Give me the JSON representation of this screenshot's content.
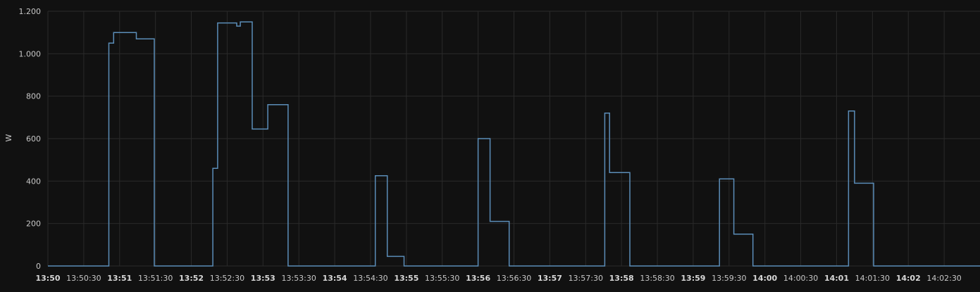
{
  "chart_data": {
    "type": "line",
    "step": true,
    "ylabel": "W",
    "ylim": [
      0,
      1200
    ],
    "yticks": [
      0,
      200,
      400,
      600,
      800,
      1000,
      1200
    ],
    "ytick_labels": [
      "0",
      "200",
      "400",
      "600",
      "800",
      "1.000",
      "1.200"
    ],
    "xlim": [
      "13:50:00",
      "14:03:00"
    ],
    "xticks": [
      {
        "t": "13:50:00",
        "label": "13:50",
        "major": true
      },
      {
        "t": "13:50:30",
        "label": "13:50:30",
        "major": false
      },
      {
        "t": "13:51:00",
        "label": "13:51",
        "major": true
      },
      {
        "t": "13:51:30",
        "label": "13:51:30",
        "major": false
      },
      {
        "t": "13:52:00",
        "label": "13:52",
        "major": true
      },
      {
        "t": "13:52:30",
        "label": "13:52:30",
        "major": false
      },
      {
        "t": "13:53:00",
        "label": "13:53",
        "major": true
      },
      {
        "t": "13:53:30",
        "label": "13:53:30",
        "major": false
      },
      {
        "t": "13:54:00",
        "label": "13:54",
        "major": true
      },
      {
        "t": "13:54:30",
        "label": "13:54:30",
        "major": false
      },
      {
        "t": "13:55:00",
        "label": "13:55",
        "major": true
      },
      {
        "t": "13:55:30",
        "label": "13:55:30",
        "major": false
      },
      {
        "t": "13:56:00",
        "label": "13:56",
        "major": true
      },
      {
        "t": "13:56:30",
        "label": "13:56:30",
        "major": false
      },
      {
        "t": "13:57:00",
        "label": "13:57",
        "major": true
      },
      {
        "t": "13:57:30",
        "label": "13:57:30",
        "major": false
      },
      {
        "t": "13:58:00",
        "label": "13:58",
        "major": true
      },
      {
        "t": "13:58:30",
        "label": "13:58:30",
        "major": false
      },
      {
        "t": "13:59:00",
        "label": "13:59",
        "major": true
      },
      {
        "t": "13:59:30",
        "label": "13:59:30",
        "major": false
      },
      {
        "t": "14:00:00",
        "label": "14:00",
        "major": true
      },
      {
        "t": "14:00:30",
        "label": "14:00:30",
        "major": false
      },
      {
        "t": "14:01:00",
        "label": "14:01",
        "major": true
      },
      {
        "t": "14:01:30",
        "label": "14:01:30",
        "major": false
      },
      {
        "t": "14:02:00",
        "label": "14:02",
        "major": true
      },
      {
        "t": "14:02:30",
        "label": "14:02:30",
        "major": false
      }
    ],
    "grid": true,
    "series": [
      {
        "color": "#5b8db8",
        "points": [
          {
            "t": "13:50:00",
            "y": 0
          },
          {
            "t": "13:50:51",
            "y": 1050
          },
          {
            "t": "13:50:55",
            "y": 1100
          },
          {
            "t": "13:51:14",
            "y": 1070
          },
          {
            "t": "13:51:29",
            "y": 0
          },
          {
            "t": "13:52:18",
            "y": 460
          },
          {
            "t": "13:52:22",
            "y": 1145
          },
          {
            "t": "13:52:38",
            "y": 1130
          },
          {
            "t": "13:52:41",
            "y": 1150
          },
          {
            "t": "13:52:51",
            "y": 645
          },
          {
            "t": "13:53:04",
            "y": 760
          },
          {
            "t": "13:53:21",
            "y": 0
          },
          {
            "t": "13:54:34",
            "y": 425
          },
          {
            "t": "13:54:44",
            "y": 45
          },
          {
            "t": "13:54:58",
            "y": 0
          },
          {
            "t": "13:56:00",
            "y": 600
          },
          {
            "t": "13:56:10",
            "y": 210
          },
          {
            "t": "13:56:26",
            "y": 0
          },
          {
            "t": "13:57:46",
            "y": 720
          },
          {
            "t": "13:57:50",
            "y": 440
          },
          {
            "t": "13:58:07",
            "y": 0
          },
          {
            "t": "13:59:22",
            "y": 410
          },
          {
            "t": "13:59:34",
            "y": 150
          },
          {
            "t": "13:59:50",
            "y": 0
          },
          {
            "t": "14:01:10",
            "y": 730
          },
          {
            "t": "14:01:15",
            "y": 390
          },
          {
            "t": "14:01:31",
            "y": 0
          },
          {
            "t": "14:03:00",
            "y": 0
          }
        ]
      }
    ]
  }
}
